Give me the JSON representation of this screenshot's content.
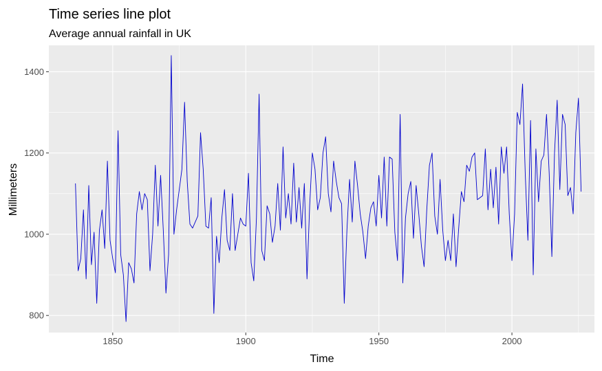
{
  "chart_data": {
    "type": "line",
    "title": "Time series line plot",
    "subtitle": "Average annual rainfall in UK",
    "xlabel": "Time",
    "ylabel": "Millimeters",
    "xlim": [
      1826,
      2031
    ],
    "ylim": [
      758,
      1465
    ],
    "x_ticks": [
      1850,
      1900,
      1950,
      2000
    ],
    "y_ticks": [
      800,
      1000,
      1200,
      1400
    ],
    "grid": true,
    "legend": "none",
    "colors": {
      "line": "#0000cd",
      "panel": "#ebebeb",
      "grid_major": "#ffffff",
      "tick_text": "#4d4d4d"
    },
    "series": [
      {
        "x_start": 1836,
        "x_step": 1,
        "values": [
          1125,
          910,
          940,
          1060,
          890,
          1120,
          925,
          1005,
          830,
          1010,
          1060,
          965,
          1180,
          985,
          940,
          905,
          1255,
          950,
          900,
          785,
          930,
          915,
          880,
          1050,
          1105,
          1060,
          1100,
          1085,
          910,
          1000,
          1170,
          1020,
          1145,
          1010,
          855,
          950,
          1440,
          1000,
          1060,
          1110,
          1160,
          1325,
          1130,
          1025,
          1015,
          1030,
          1045,
          1250,
          1160,
          1020,
          1015,
          1090,
          805,
          995,
          930,
          1040,
          1110,
          985,
          960,
          1100,
          960,
          1000,
          1040,
          1025,
          1020,
          1150,
          930,
          885,
          1040,
          1345,
          960,
          935,
          1070,
          1050,
          980,
          1020,
          1125,
          1010,
          1215,
          1040,
          1100,
          1025,
          1175,
          1030,
          1115,
          1015,
          1125,
          890,
          1070,
          1200,
          1160,
          1060,
          1090,
          1200,
          1240,
          1100,
          1055,
          1180,
          1130,
          1090,
          1075,
          830,
          1010,
          1135,
          1030,
          1180,
          1120,
          1050,
          1005,
          940,
          1020,
          1065,
          1080,
          1020,
          1145,
          1040,
          1190,
          1020,
          1190,
          1185,
          1005,
          935,
          1295,
          880,
          1040,
          1100,
          1130,
          990,
          1120,
          1050,
          970,
          920,
          1060,
          1170,
          1200,
          1045,
          1000,
          1135,
          1010,
          935,
          985,
          935,
          1050,
          920,
          1015,
          1105,
          1080,
          1170,
          1155,
          1190,
          1200,
          1085,
          1090,
          1095,
          1210,
          1060,
          1160,
          1065,
          1165,
          1025,
          1215,
          1150,
          1215,
          1050,
          935,
          1050,
          1300,
          1270,
          1370,
          1150,
          985,
          1280,
          900,
          1210,
          1080,
          1180,
          1195,
          1295,
          1150,
          945,
          1200,
          1330,
          1110,
          1295,
          1270,
          1095,
          1115,
          1050,
          1250,
          1335,
          1105
        ]
      }
    ]
  }
}
